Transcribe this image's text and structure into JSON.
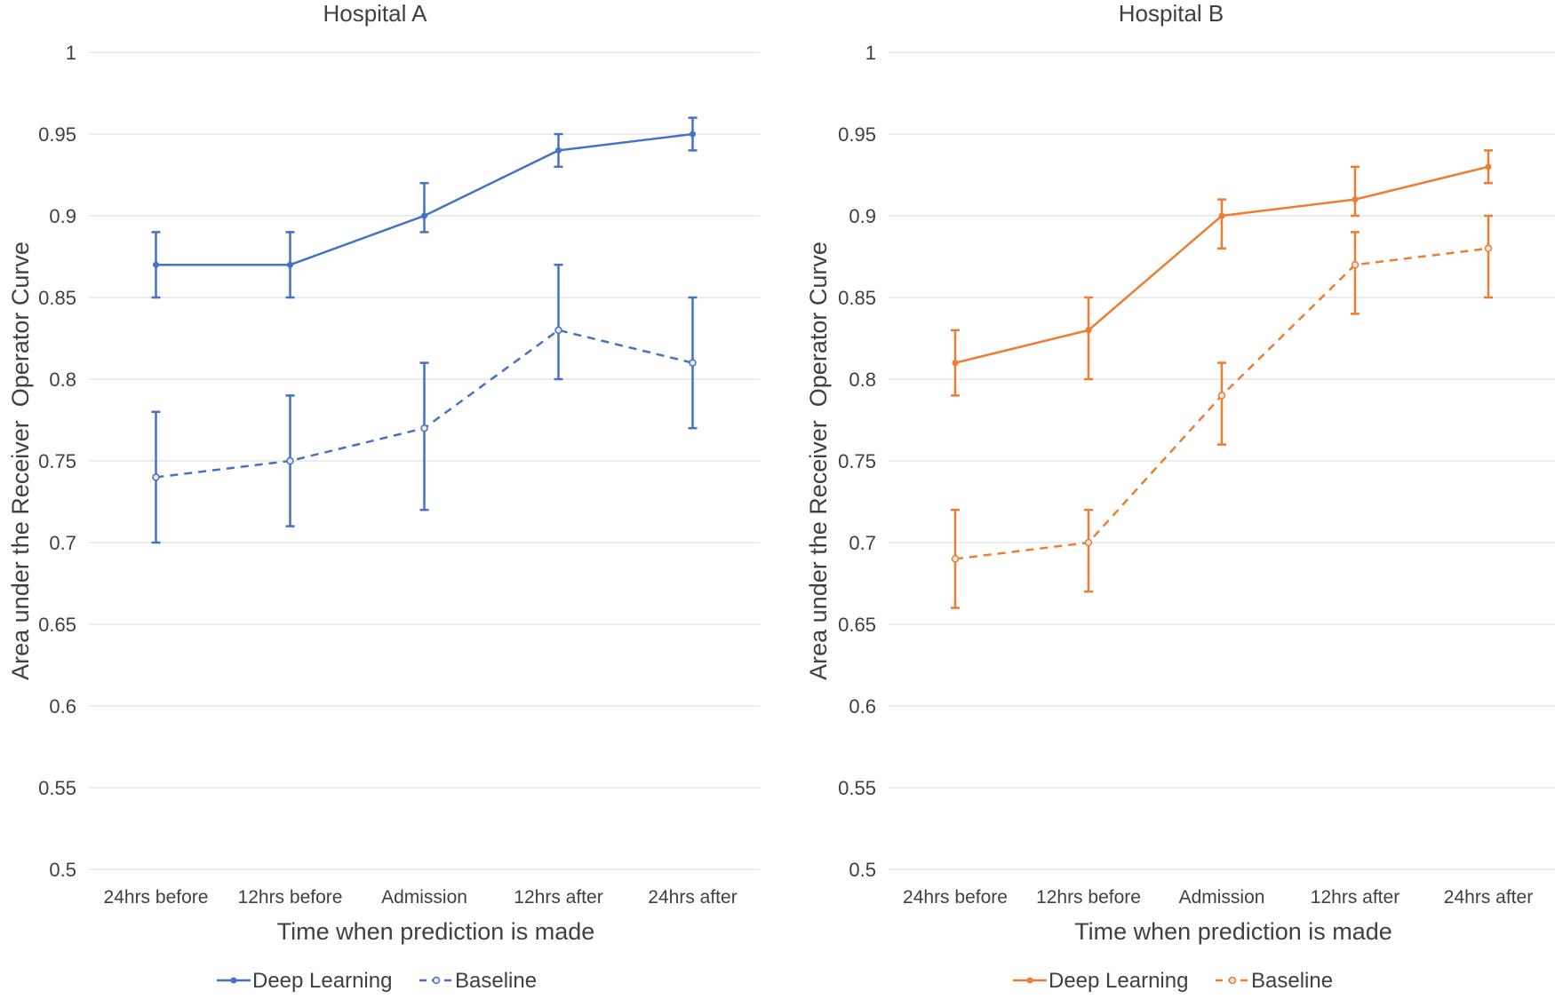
{
  "chart_data": [
    {
      "type": "line",
      "title": "Hospital A",
      "xlabel": "Time when prediction is made",
      "ylabel": "Area under the Receiver  Operator Curve",
      "categories": [
        "24hrs before",
        "12hrs before",
        "Admission",
        "12hrs after",
        "24hrs after"
      ],
      "ylim": [
        0.5,
        1
      ],
      "y_ticks": [
        "0.5",
        "0.55",
        "0.6",
        "0.65",
        "0.7",
        "0.75",
        "0.8",
        "0.85",
        "0.9",
        "0.95",
        "1"
      ],
      "grid": "horizontal",
      "legend": "bottom",
      "series": [
        {
          "name": "Deep Learning",
          "style": "solid",
          "color": "#4472C4",
          "values": [
            0.87,
            0.87,
            0.9,
            0.94,
            0.95
          ],
          "error_low": [
            0.85,
            0.85,
            0.89,
            0.93,
            0.94
          ],
          "error_high": [
            0.89,
            0.89,
            0.92,
            0.95,
            0.96
          ]
        },
        {
          "name": "Baseline",
          "style": "dashed",
          "color": "#4472C4",
          "values": [
            0.74,
            0.75,
            0.77,
            0.83,
            0.81
          ],
          "error_low": [
            0.7,
            0.71,
            0.72,
            0.8,
            0.77
          ],
          "error_high": [
            0.78,
            0.79,
            0.81,
            0.87,
            0.85
          ]
        }
      ]
    },
    {
      "type": "line",
      "title": "Hospital B",
      "xlabel": "Time when prediction is made",
      "ylabel": "Area under the Receiver  Operator Curve",
      "categories": [
        "24hrs before",
        "12hrs before",
        "Admission",
        "12hrs after",
        "24hrs after"
      ],
      "ylim": [
        0.5,
        1
      ],
      "y_ticks": [
        "0.5",
        "0.55",
        "0.6",
        "0.65",
        "0.7",
        "0.75",
        "0.8",
        "0.85",
        "0.9",
        "0.95",
        "1"
      ],
      "grid": "horizontal",
      "legend": "bottom",
      "series": [
        {
          "name": "Deep Learning",
          "style": "solid",
          "color": "#ED7D31",
          "values": [
            0.81,
            0.83,
            0.9,
            0.91,
            0.93
          ],
          "error_low": [
            0.79,
            0.8,
            0.88,
            0.9,
            0.92
          ],
          "error_high": [
            0.83,
            0.85,
            0.91,
            0.93,
            0.94
          ]
        },
        {
          "name": "Baseline",
          "style": "dashed",
          "color": "#ED7D31",
          "values": [
            0.69,
            0.7,
            0.79,
            0.87,
            0.88
          ],
          "error_low": [
            0.66,
            0.67,
            0.76,
            0.84,
            0.85
          ],
          "error_high": [
            0.72,
            0.72,
            0.81,
            0.89,
            0.9
          ]
        }
      ]
    }
  ]
}
